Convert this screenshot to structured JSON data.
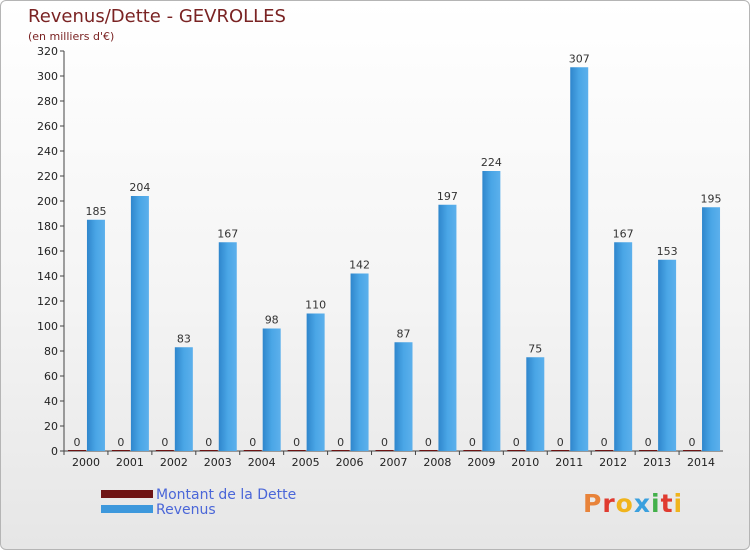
{
  "header": {
    "title": "Revenus/Dette - GEVROLLES",
    "subtitle": "(en milliers d'€)"
  },
  "legend": {
    "dette_label": "Montant de la Dette",
    "revenus_label": "Revenus"
  },
  "logo": {
    "text": "Proxiti",
    "colors": [
      "#e8833a",
      "#e03b30",
      "#f0b41c",
      "#3aa0de",
      "#43b04a",
      "#e03b30",
      "#f0b41c"
    ]
  },
  "colors": {
    "dette": "#6e1414",
    "revenus": "#3d98dc",
    "revenus_light": "#63b3ec",
    "title": "#7a2323",
    "legend_text": "#4a66d8"
  },
  "chart_data": {
    "type": "bar",
    "title": "Revenus/Dette - GEVROLLES",
    "subtitle": "(en milliers d'€)",
    "categories": [
      "2000",
      "2001",
      "2002",
      "2003",
      "2004",
      "2005",
      "2006",
      "2007",
      "2008",
      "2009",
      "2010",
      "2011",
      "2012",
      "2013",
      "2014"
    ],
    "series": [
      {
        "name": "Montant de la Dette",
        "values": [
          0,
          0,
          0,
          0,
          0,
          0,
          0,
          0,
          0,
          0,
          0,
          0,
          0,
          0,
          0
        ]
      },
      {
        "name": "Revenus",
        "values": [
          185,
          204,
          83,
          167,
          98,
          110,
          142,
          87,
          197,
          224,
          75,
          307,
          167,
          153,
          195
        ]
      }
    ],
    "ylim": [
      0,
      320
    ],
    "yticks": [
      0,
      20,
      40,
      60,
      80,
      100,
      120,
      140,
      160,
      180,
      200,
      220,
      240,
      260,
      280,
      300,
      320
    ],
    "grid": false,
    "legend_position": "bottom-left"
  }
}
